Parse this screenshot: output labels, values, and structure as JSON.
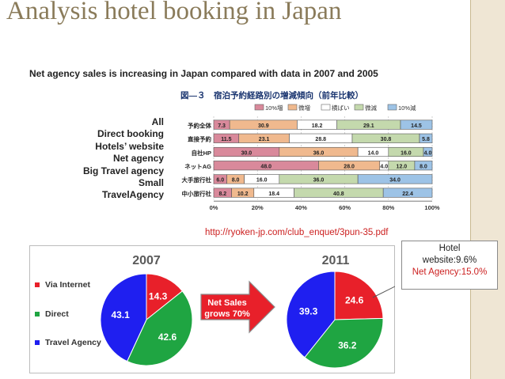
{
  "slide": {
    "title": "Analysis hotel booking  in Japan",
    "subtitle": "Net agency sales is increasing  in Japan compared with data in 2007 and 2005",
    "categories": [
      "All",
      "Direct booking",
      "Hotels’  website",
      "Net agency",
      "Big Travel agency",
      "Small",
      "TravelAgency"
    ],
    "source_link": "http://ryoken-jp.com/club_enquet/3pun-35.pdf",
    "callout": {
      "line1": "Hotel",
      "line2": "website:9.6%",
      "line3": "Net Agency:15.0%"
    },
    "colors": {
      "title": "#8a7b5a",
      "sidebar": "#efe6d4",
      "accent_red": "#cc1f1f"
    }
  },
  "chart_data": [
    {
      "type": "bar",
      "orientation": "horizontal",
      "stacked": true,
      "title": "図―３　宿泊予約経路別の増減傾向（前年比較）",
      "categories": [
        "予約全体",
        "直接予約",
        "自社HP",
        "ネットAG",
        "大手旅行社",
        "中小旅行社"
      ],
      "series": [
        {
          "name": "10%増",
          "color": "#d9899b",
          "values": [
            7.3,
            11.5,
            30.0,
            48.0,
            6.0,
            8.2
          ],
          "labels": [
            "7.3",
            "11.5",
            "30.0",
            "48.0",
            "6.0",
            "8.2"
          ]
        },
        {
          "name": "微増",
          "color": "#f0b98e",
          "values": [
            30.9,
            23.1,
            36.0,
            28.0,
            8.0,
            10.2
          ],
          "labels": [
            "30.9",
            "23.1",
            "36.0",
            "28.0",
            "8.0",
            "10.2"
          ]
        },
        {
          "name": "横ばい",
          "color": "#ffffff",
          "values": [
            18.2,
            28.8,
            14.0,
            4.0,
            16.0,
            18.4
          ],
          "labels": [
            "18.2",
            "28.8",
            "14.0",
            "4.0",
            "16.0",
            "18.4"
          ]
        },
        {
          "name": "微減",
          "color": "#c4d9ad",
          "values": [
            29.1,
            30.8,
            16.0,
            12.0,
            36.0,
            40.8
          ],
          "labels": [
            "29.1",
            "30.8",
            "16.0",
            "12.0",
            "36.0",
            "40.8"
          ]
        },
        {
          "name": "10%減",
          "color": "#9dc3e6",
          "values": [
            14.5,
            5.8,
            4.0,
            8.0,
            34.0,
            22.4
          ],
          "labels": [
            "14.5",
            "5.8",
            "4.0",
            "8.0",
            "34.0",
            "22.4"
          ]
        }
      ],
      "xlim": [
        0,
        100
      ],
      "x_ticks": [
        "0%",
        "20%",
        "40%",
        "60%",
        "80%",
        "100%"
      ],
      "legend": "top"
    },
    {
      "type": "pie",
      "title": "2007",
      "series": [
        {
          "name": "Via Internet",
          "color": "#e8202a",
          "value": 14.3,
          "label": "14.3"
        },
        {
          "name": "Direct",
          "color": "#1fa542",
          "value": 42.6,
          "label": "42.6"
        },
        {
          "name": "Travel Agency",
          "color": "#1f1ff0",
          "value": 43.1,
          "label": "43.1"
        }
      ],
      "legend": "left"
    },
    {
      "type": "pie",
      "title": "2011",
      "series": [
        {
          "name": "Via Internet",
          "color": "#e8202a",
          "value": 24.6,
          "label": "24.6"
        },
        {
          "name": "Direct",
          "color": "#1fa542",
          "value": 36.2,
          "label": "36.2"
        },
        {
          "name": "Travel Agency",
          "color": "#1f1ff0",
          "value": 39.3,
          "label": "39.3"
        }
      ]
    }
  ],
  "arrow": {
    "line1": "Net Sales",
    "line2": "grows 70%"
  }
}
